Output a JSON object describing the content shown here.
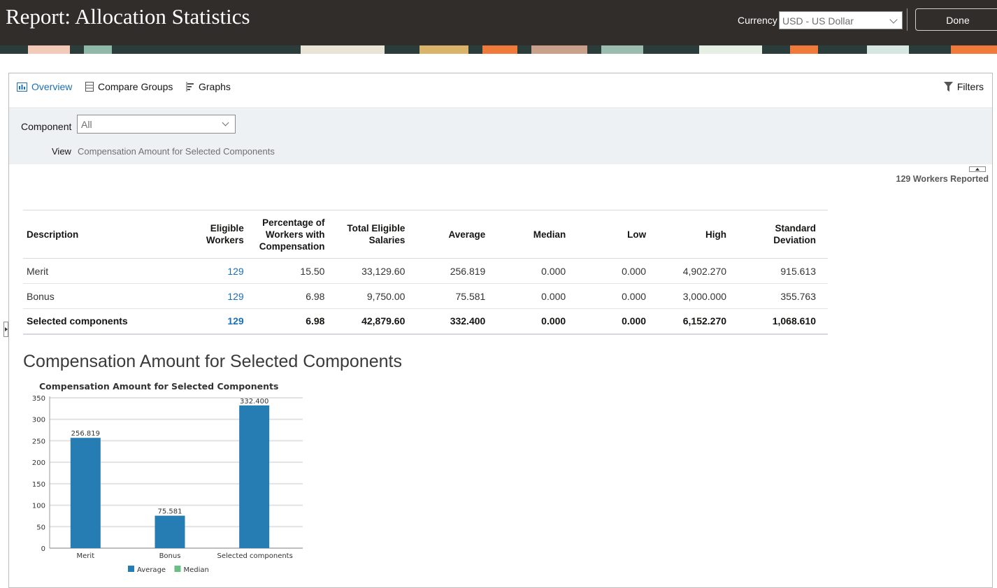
{
  "header": {
    "title": "Report: Allocation Statistics",
    "currency_label": "Currency",
    "currency_value": "USD - US Dollar",
    "done_label": "Done"
  },
  "tabs": [
    {
      "label": "Overview",
      "active": true,
      "icon": "overview-icon"
    },
    {
      "label": "Compare Groups",
      "active": false,
      "icon": "compare-groups-icon"
    },
    {
      "label": "Graphs",
      "active": false,
      "icon": "graphs-icon"
    }
  ],
  "filters_label": "Filters",
  "criteria": {
    "component_label": "Component",
    "component_value": "All",
    "view_label": "View",
    "view_value": "Compensation Amount for Selected Components"
  },
  "workers_reported": "129 Workers Reported",
  "table": {
    "headers": [
      "Description",
      "Eligible Workers",
      "Percentage of Workers with Compensation",
      "Total Eligible Salaries",
      "Average",
      "Median",
      "Low",
      "High",
      "Standard Deviation"
    ],
    "rows": [
      [
        "Merit",
        "129",
        "15.50",
        "33,129.60",
        "256.819",
        "0.000",
        "0.000",
        "4,902.270",
        "915.613"
      ],
      [
        "Bonus",
        "129",
        "6.98",
        "9,750.00",
        "75.581",
        "0.000",
        "0.000",
        "3,000.000",
        "355.763"
      ],
      [
        "Selected components",
        "129",
        "6.98",
        "42,879.60",
        "332.400",
        "0.000",
        "0.000",
        "6,152.270",
        "1,068.610"
      ]
    ]
  },
  "section_title": "Compensation Amount for Selected Components",
  "chart_data": {
    "type": "bar",
    "title": "Compensation Amount for Selected Components",
    "categories": [
      "Merit",
      "Bonus",
      "Selected components"
    ],
    "series": [
      {
        "name": "Average",
        "values": [
          256.819,
          75.581,
          332.4
        ],
        "color": "#267db3"
      },
      {
        "name": "Median",
        "values": [
          0,
          0,
          0
        ],
        "color": "#68c182"
      }
    ],
    "data_labels": [
      "256.819",
      "75.581",
      "332.400"
    ],
    "yticks": [
      0,
      50,
      100,
      150,
      200,
      250,
      300,
      350
    ],
    "ylim": [
      0,
      350
    ],
    "grid": true,
    "legend_position": "bottom"
  },
  "colors": {
    "header_bg": "#312d2a",
    "accent": "#1c6fb5",
    "criteria_bg": "#eef1f4"
  }
}
